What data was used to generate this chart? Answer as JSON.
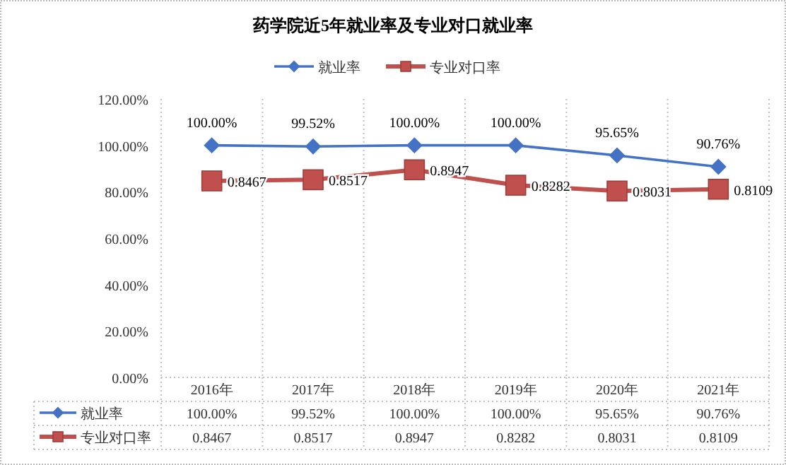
{
  "chart_data": {
    "type": "line",
    "title": "药学院近5年就业率及专业对口就业率",
    "categories": [
      "2016年",
      "2017年",
      "2018年",
      "2019年",
      "2020年",
      "2021年"
    ],
    "series": [
      {
        "name": "就业率",
        "color": "#4472c4",
        "marker": "diamond",
        "values": [
          1,
          0.9952,
          1,
          1,
          0.9565,
          0.9076
        ],
        "value_labels": [
          "100.00%",
          "99.52%",
          "100.00%",
          "100.00%",
          "95.65%",
          "90.76%"
        ]
      },
      {
        "name": "专业对口率",
        "color": "#c0504d",
        "marker": "square",
        "values": [
          0.8467,
          0.8517,
          0.8947,
          0.8282,
          0.8031,
          0.8109
        ],
        "value_labels": [
          "0.8467",
          "0.8517",
          "0.8947",
          "0.8282",
          "0.8031",
          "0.8109"
        ]
      }
    ],
    "ylim": [
      0,
      1.2
    ],
    "yticks": [
      {
        "value": 0,
        "label": "0.00%"
      },
      {
        "value": 0.2,
        "label": "20.00%"
      },
      {
        "value": 0.4,
        "label": "40.00%"
      },
      {
        "value": 0.6,
        "label": "60.00%"
      },
      {
        "value": 0.8,
        "label": "80.00%"
      },
      {
        "value": 1,
        "label": "100.00%"
      },
      {
        "value": 1.2,
        "label": "120.00%"
      }
    ],
    "grid": "x",
    "legend": "top"
  }
}
